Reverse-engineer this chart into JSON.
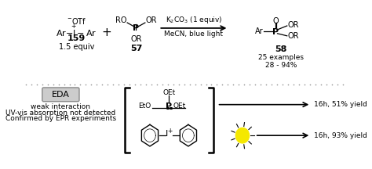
{
  "bg_color": "#ffffff",
  "top": {
    "r1_otf": "-OTf",
    "r1_struct": "Ar—I⁺—Ar",
    "r1_label": "159",
    "r1_equiv": "1.5 equiv",
    "plus": "+",
    "r2_ro": "RO",
    "r2_or1": "OR",
    "r2_p": "P",
    "r2_or2": "OR",
    "r2_label": "57",
    "arr_top": "K$_2$CO$_3$ (1 equiv)",
    "arr_bot": "MeCN, blue light",
    "prod_o": "O",
    "prod_p": "P",
    "prod_or1": "OR",
    "prod_ar": "Ar",
    "prod_or2": "OR",
    "prod_label": "58",
    "prod_ex": "25 examples",
    "prod_pct": "28 - 94%"
  },
  "bottom": {
    "eda": "EDA",
    "t1": "weak interaction",
    "t2": "UV-vis absorption not detected",
    "t3": "Confirmed by EPR experiments",
    "oet_top": "OEt",
    "p_label": "P",
    "eto_label": "EtO",
    "oet_right": "OEt",
    "y1": "16h, 51% yield",
    "y2": "16h, 93% yield"
  },
  "divider_color": "#999999"
}
